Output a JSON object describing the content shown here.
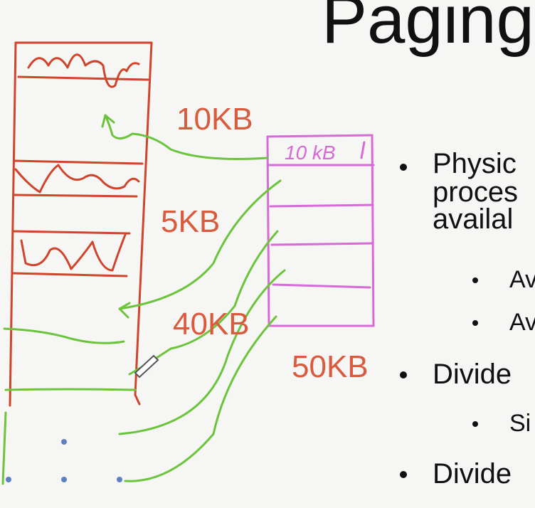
{
  "slide": {
    "title": "Paging",
    "labels": {
      "size_10kb": "10KB",
      "size_5kb": "5KB",
      "size_40kb": "40KB",
      "size_50kb": "50KB",
      "handwritten_10kb": "10 kB"
    },
    "bullets": [
      {
        "level": 1,
        "lines": [
          "Physic",
          "proces",
          "availal"
        ]
      },
      {
        "level": 2,
        "lines": [
          "Av"
        ]
      },
      {
        "level": 2,
        "lines": [
          "Av"
        ]
      },
      {
        "level": 1,
        "lines": [
          "Divide"
        ]
      },
      {
        "level": 2,
        "lines": [
          "Si"
        ]
      },
      {
        "level": 1,
        "lines": [
          "Divide"
        ]
      }
    ]
  },
  "colors": {
    "ink_red": "#d0442c",
    "ink_green": "#6cc43c",
    "ink_magenta": "#d86ad8",
    "ink_blue": "#5f7fc0",
    "text": "#111111",
    "label_orange": "#d95a3c"
  }
}
